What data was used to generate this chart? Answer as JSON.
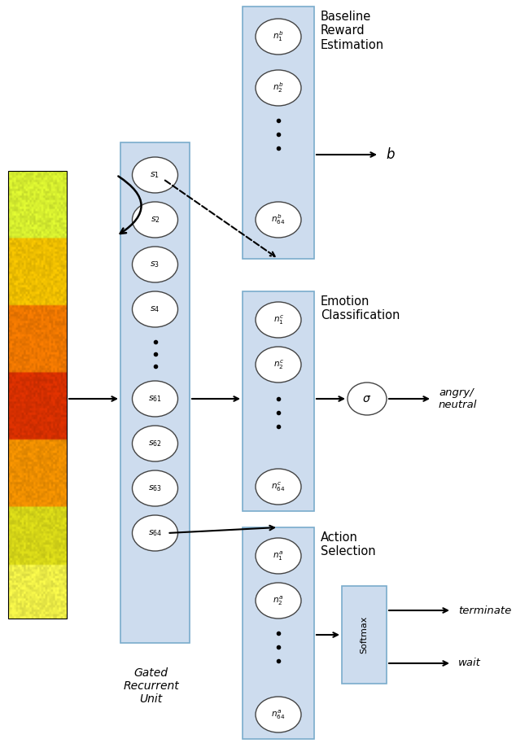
{
  "fig_width": 6.34,
  "fig_height": 9.24,
  "bg_color": "#ffffff",
  "box_color": "#cddcee",
  "box_edge_color": "#7aaccc",
  "node_color": "#ffffff",
  "node_edge_color": "#444444",
  "softmax_box_color": "#cddcee",
  "label_baseline": "Baseline\nReward\nEstimation",
  "label_emotion": "Emotion\nClassification",
  "label_action": "Action\nSelection",
  "label_gru": "Gated\nRecurrent\nUnit",
  "output_b": "$b$",
  "output_angry": "angry/\nneutral",
  "output_terminate": "terminate",
  "output_wait": "wait"
}
